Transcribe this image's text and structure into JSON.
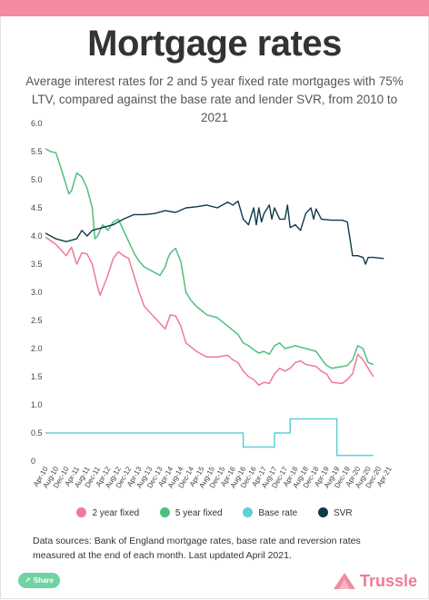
{
  "title": "Mortgage rates",
  "subtitle": "Average interest rates for 2 and 5 year fixed rate mortgages with 75% LTV, compared against the base rate and lender SVR, from 2010 to 2021",
  "source_text": "Data sources: Bank of England mortgage rates, base rate and reversion rates measured at the end of each month. Last updated April 2021.",
  "share_label": "Share",
  "logo_text": "Trussle",
  "colors": {
    "two_year": "#ee7a98",
    "five_year": "#4fbf7f",
    "base": "#5fd0d6",
    "svr": "#0e3a4a",
    "brand": "#f28aa0"
  },
  "chart_data": {
    "type": "line",
    "title": "Mortgage rates",
    "xlabel": "",
    "ylabel": "",
    "ylim": [
      0,
      6
    ],
    "yticks": [
      "6.0",
      "5.5",
      "5.0",
      "4.5",
      "4.0",
      "3.5",
      "3.0",
      "2.5",
      "2.0",
      "1.5",
      "1.0",
      "0.5",
      "0"
    ],
    "x_start": "Apr-10",
    "x_ticks": [
      "Apr-10",
      "Aug-10",
      "Dec-10",
      "Apr-11",
      "Aug-11",
      "Dec-11",
      "Apr-12",
      "Aug-12",
      "Dec-12",
      "Apr-13",
      "Aug-13",
      "Dec-13",
      "Apr-14",
      "Aug-14",
      "Dec-14",
      "Apr-15",
      "Aug-15",
      "Dec-15",
      "Apr-16",
      "Aug-16",
      "Dec-16",
      "Apr-17",
      "Aug-17",
      "Dec-17",
      "Apr-18",
      "Aug-18",
      "Dec-18",
      "Apr-19",
      "Aug-19",
      "Dec-19",
      "Apr-20",
      "Aug-20",
      "Dec-20",
      "Apr-21"
    ],
    "grid": false,
    "legend_position": "bottom",
    "series": [
      {
        "name": "2 year fixed",
        "color": "#ee7a98",
        "points": [
          [
            0,
            3.98
          ],
          [
            4,
            3.85
          ],
          [
            8,
            3.65
          ],
          [
            10,
            3.8
          ],
          [
            12,
            3.5
          ],
          [
            14,
            3.7
          ],
          [
            16,
            3.68
          ],
          [
            18,
            3.5
          ],
          [
            20,
            3.1
          ],
          [
            21,
            2.95
          ],
          [
            24,
            3.3
          ],
          [
            26,
            3.6
          ],
          [
            28,
            3.72
          ],
          [
            30,
            3.65
          ],
          [
            32,
            3.6
          ],
          [
            34,
            3.3
          ],
          [
            36,
            3.0
          ],
          [
            38,
            2.75
          ],
          [
            40,
            2.65
          ],
          [
            44,
            2.45
          ],
          [
            46,
            2.35
          ],
          [
            48,
            2.6
          ],
          [
            50,
            2.58
          ],
          [
            52,
            2.4
          ],
          [
            54,
            2.1
          ],
          [
            58,
            1.95
          ],
          [
            62,
            1.85
          ],
          [
            66,
            1.85
          ],
          [
            70,
            1.88
          ],
          [
            72,
            1.8
          ],
          [
            74,
            1.75
          ],
          [
            76,
            1.6
          ],
          [
            78,
            1.5
          ],
          [
            80,
            1.45
          ],
          [
            82,
            1.35
          ],
          [
            84,
            1.4
          ],
          [
            86,
            1.38
          ],
          [
            88,
            1.55
          ],
          [
            90,
            1.65
          ],
          [
            92,
            1.6
          ],
          [
            94,
            1.65
          ],
          [
            96,
            1.75
          ],
          [
            98,
            1.78
          ],
          [
            100,
            1.72
          ],
          [
            104,
            1.68
          ],
          [
            106,
            1.6
          ],
          [
            108,
            1.55
          ],
          [
            110,
            1.4
          ],
          [
            114,
            1.38
          ],
          [
            116,
            1.45
          ],
          [
            118,
            1.55
          ],
          [
            120,
            1.9
          ],
          [
            122,
            1.8
          ],
          [
            124,
            1.65
          ],
          [
            126,
            1.5
          ]
        ]
      },
      {
        "name": "5 year fixed",
        "color": "#4fbf7f",
        "points": [
          [
            0,
            5.55
          ],
          [
            2,
            5.5
          ],
          [
            4,
            5.48
          ],
          [
            6,
            5.2
          ],
          [
            8,
            4.9
          ],
          [
            9,
            4.75
          ],
          [
            10,
            4.8
          ],
          [
            12,
            5.12
          ],
          [
            14,
            5.05
          ],
          [
            16,
            4.85
          ],
          [
            18,
            4.5
          ],
          [
            19,
            3.95
          ],
          [
            20,
            4.0
          ],
          [
            22,
            4.2
          ],
          [
            24,
            4.1
          ],
          [
            26,
            4.25
          ],
          [
            28,
            4.3
          ],
          [
            30,
            4.1
          ],
          [
            32,
            3.9
          ],
          [
            34,
            3.7
          ],
          [
            36,
            3.55
          ],
          [
            38,
            3.45
          ],
          [
            40,
            3.4
          ],
          [
            42,
            3.35
          ],
          [
            44,
            3.3
          ],
          [
            46,
            3.45
          ],
          [
            47,
            3.6
          ],
          [
            48,
            3.7
          ],
          [
            50,
            3.78
          ],
          [
            52,
            3.55
          ],
          [
            54,
            3.0
          ],
          [
            56,
            2.85
          ],
          [
            58,
            2.75
          ],
          [
            62,
            2.6
          ],
          [
            66,
            2.55
          ],
          [
            70,
            2.4
          ],
          [
            74,
            2.25
          ],
          [
            76,
            2.1
          ],
          [
            78,
            2.05
          ],
          [
            80,
            1.98
          ],
          [
            82,
            1.92
          ],
          [
            84,
            1.95
          ],
          [
            86,
            1.9
          ],
          [
            88,
            2.05
          ],
          [
            90,
            2.1
          ],
          [
            92,
            2.0
          ],
          [
            96,
            2.05
          ],
          [
            100,
            2.0
          ],
          [
            104,
            1.95
          ],
          [
            106,
            1.82
          ],
          [
            108,
            1.7
          ],
          [
            110,
            1.65
          ],
          [
            114,
            1.68
          ],
          [
            116,
            1.7
          ],
          [
            118,
            1.8
          ],
          [
            120,
            2.05
          ],
          [
            122,
            2.0
          ],
          [
            124,
            1.75
          ],
          [
            126,
            1.72
          ]
        ]
      },
      {
        "name": "Base rate",
        "color": "#5fd0d6",
        "points": [
          [
            0,
            0.5
          ],
          [
            76,
            0.5
          ],
          [
            76,
            0.25
          ],
          [
            88,
            0.25
          ],
          [
            88,
            0.5
          ],
          [
            94,
            0.5
          ],
          [
            94,
            0.75
          ],
          [
            112,
            0.75
          ],
          [
            112,
            0.1
          ],
          [
            126,
            0.1
          ]
        ]
      },
      {
        "name": "SVR",
        "color": "#0e3a4a",
        "points": [
          [
            0,
            4.05
          ],
          [
            4,
            3.95
          ],
          [
            8,
            3.9
          ],
          [
            12,
            3.95
          ],
          [
            14,
            4.1
          ],
          [
            16,
            4.0
          ],
          [
            18,
            4.1
          ],
          [
            22,
            4.15
          ],
          [
            26,
            4.2
          ],
          [
            30,
            4.3
          ],
          [
            34,
            4.38
          ],
          [
            38,
            4.38
          ],
          [
            42,
            4.4
          ],
          [
            46,
            4.45
          ],
          [
            50,
            4.42
          ],
          [
            54,
            4.5
          ],
          [
            58,
            4.52
          ],
          [
            62,
            4.55
          ],
          [
            66,
            4.5
          ],
          [
            70,
            4.6
          ],
          [
            72,
            4.55
          ],
          [
            74,
            4.62
          ],
          [
            76,
            4.3
          ],
          [
            78,
            4.2
          ],
          [
            80,
            4.5
          ],
          [
            81,
            4.2
          ],
          [
            82,
            4.5
          ],
          [
            83,
            4.25
          ],
          [
            84,
            4.4
          ],
          [
            86,
            4.55
          ],
          [
            87,
            4.3
          ],
          [
            88,
            4.5
          ],
          [
            90,
            4.3
          ],
          [
            92,
            4.3
          ],
          [
            93,
            4.55
          ],
          [
            94,
            4.15
          ],
          [
            96,
            4.2
          ],
          [
            98,
            4.1
          ],
          [
            100,
            4.4
          ],
          [
            102,
            4.5
          ],
          [
            103,
            4.3
          ],
          [
            104,
            4.48
          ],
          [
            106,
            4.3
          ],
          [
            110,
            4.28
          ],
          [
            114,
            4.28
          ],
          [
            116,
            4.25
          ],
          [
            118,
            3.65
          ],
          [
            120,
            3.65
          ],
          [
            122,
            3.62
          ],
          [
            123,
            3.5
          ],
          [
            124,
            3.62
          ],
          [
            126,
            3.62
          ],
          [
            130,
            3.6
          ]
        ]
      }
    ]
  }
}
